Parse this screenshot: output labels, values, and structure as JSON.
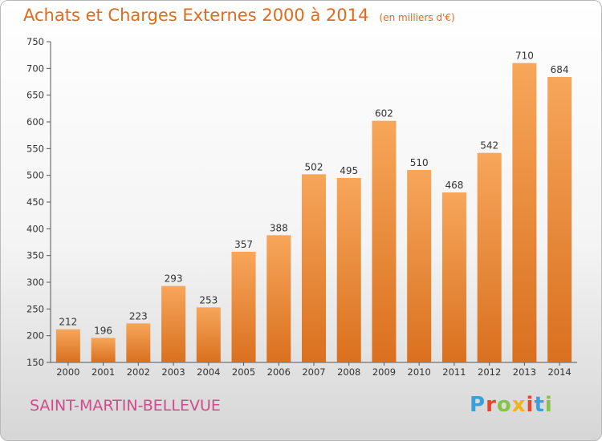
{
  "header": {
    "title": "Achats et Charges Externes 2000 à 2014",
    "unit": "(en milliers d'€)"
  },
  "footer": {
    "commune": "SAINT-MARTIN-BELLEVUE",
    "brand": "Proxiti",
    "brand_colors": [
      "#3aa0dc",
      "#e8442a",
      "#86c441",
      "#f2b21c",
      "#e8442a",
      "#3aa0dc",
      "#86c441"
    ]
  },
  "colors": {
    "bar_light": "#f7a65a",
    "bar_dark": "#d9701f",
    "title": "#e26a1c",
    "commune": "#d24a8c"
  },
  "chart_data": {
    "type": "bar",
    "title": "Achats et Charges Externes 2000 à 2014",
    "categories": [
      "2000",
      "2001",
      "2002",
      "2003",
      "2004",
      "2005",
      "2006",
      "2007",
      "2008",
      "2009",
      "2010",
      "2011",
      "2012",
      "2013",
      "2014"
    ],
    "values": [
      212,
      196,
      223,
      293,
      253,
      357,
      388,
      502,
      495,
      602,
      510,
      468,
      542,
      710,
      684
    ],
    "ylim": [
      150,
      750
    ],
    "yticks": [
      150,
      200,
      250,
      300,
      350,
      400,
      450,
      500,
      550,
      600,
      650,
      700,
      750
    ],
    "grid": false,
    "legend": "none"
  }
}
